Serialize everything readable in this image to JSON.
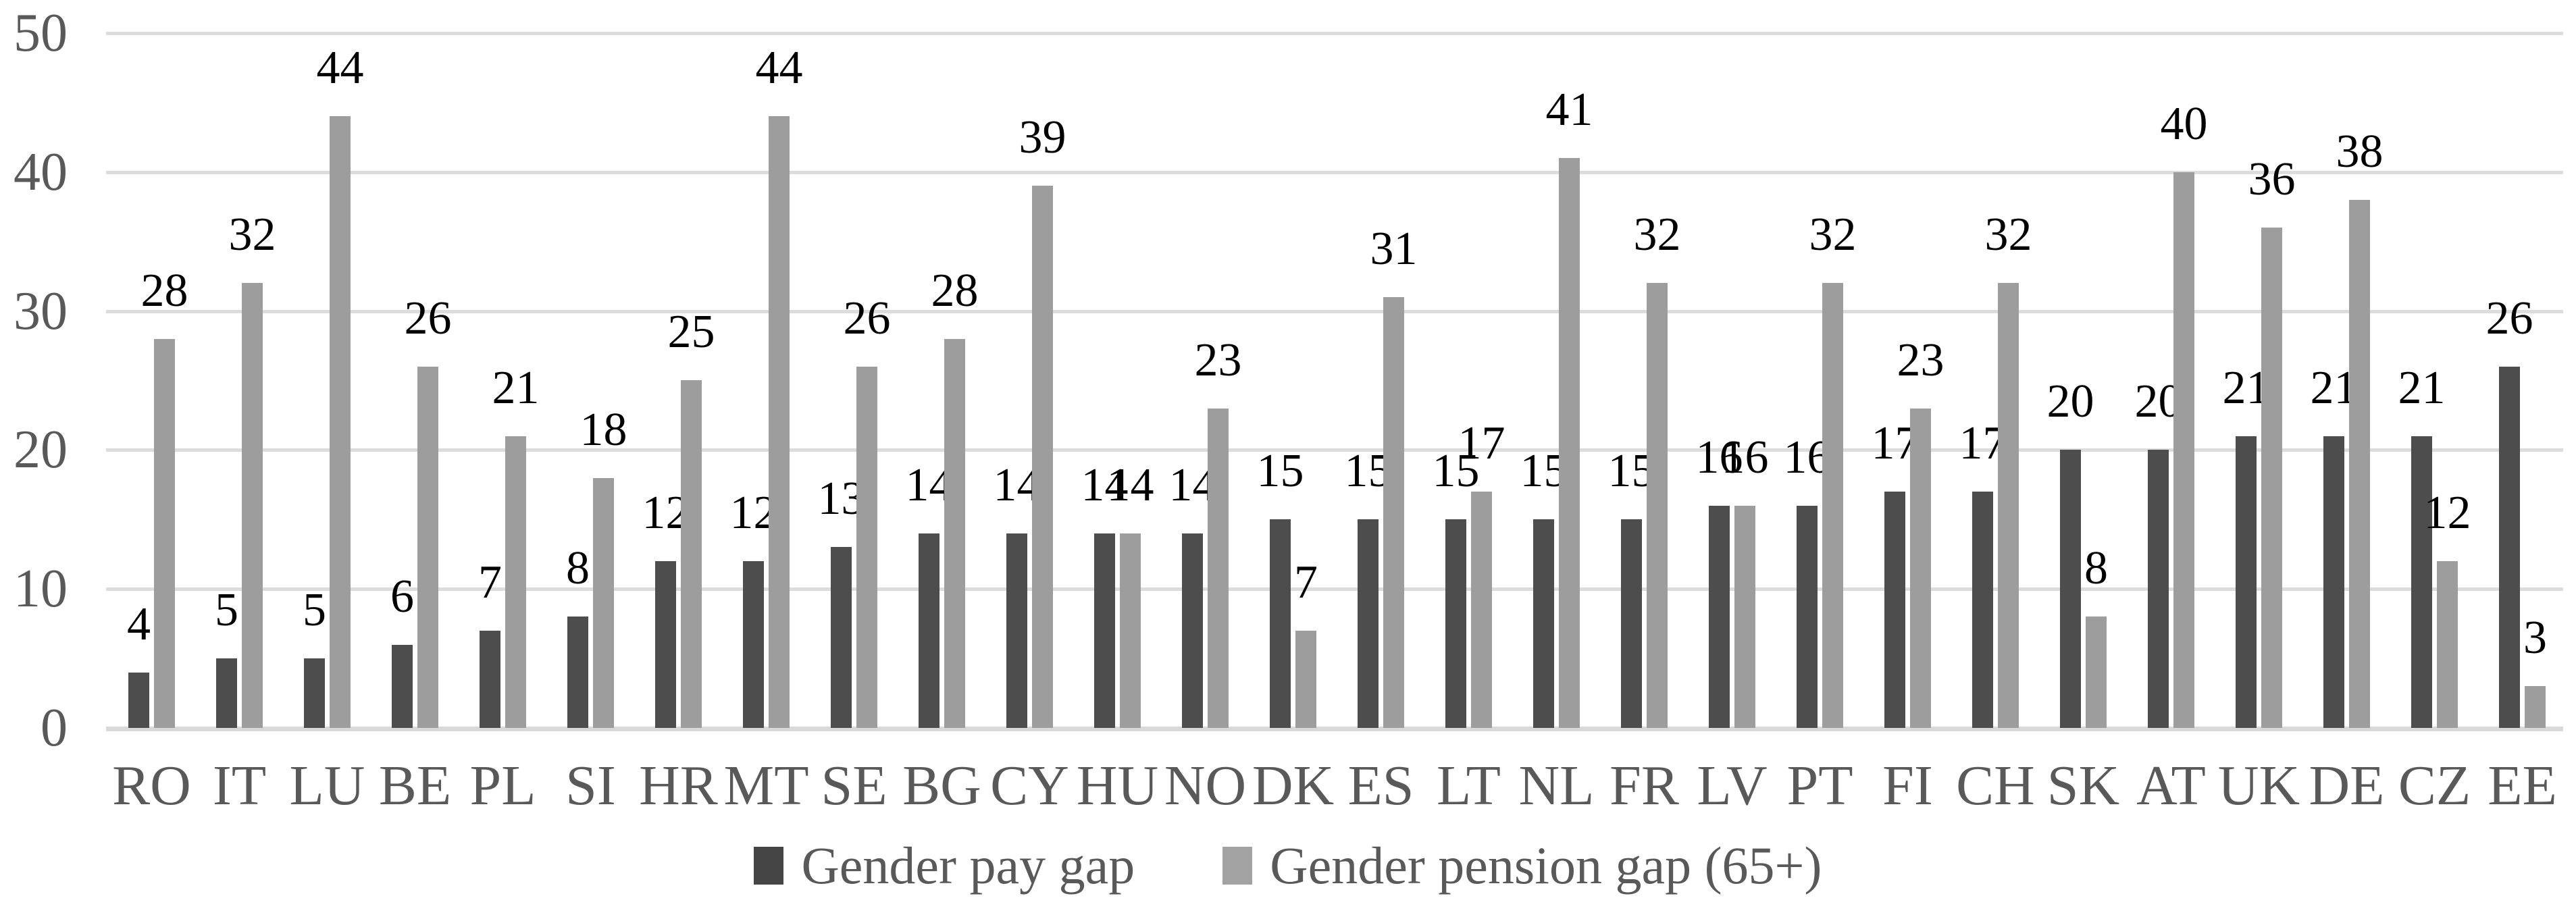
{
  "chart_data": {
    "type": "bar",
    "title": "",
    "xlabel": "",
    "ylabel": "",
    "ylim": [
      0,
      50
    ],
    "yticks": [
      0,
      10,
      20,
      30,
      40,
      50
    ],
    "grid": true,
    "data_labels": true,
    "legend_position": "bottom-center",
    "categories": [
      "RO",
      "IT",
      "LU",
      "BE",
      "PL",
      "SI",
      "HR",
      "MT",
      "SE",
      "BG",
      "CY",
      "HU",
      "NO",
      "DK",
      "ES",
      "LT",
      "NL",
      "FR",
      "LV",
      "PT",
      "FI",
      "CH",
      "SK",
      "AT",
      "UK",
      "DE",
      "CZ",
      "EE"
    ],
    "series": [
      {
        "name": "Gender pay gap",
        "color": "#4d4d4d",
        "values": [
          4,
          5,
          5,
          6,
          7,
          8,
          12,
          12,
          13,
          14,
          14,
          14,
          14,
          15,
          15,
          15,
          15,
          15,
          16,
          16,
          17,
          17,
          20,
          20,
          21,
          21,
          21,
          26
        ]
      },
      {
        "name": "Gender pension gap (65+)",
        "color": "#9d9d9d",
        "values": [
          28,
          32,
          44,
          26,
          21,
          18,
          25,
          44,
          26,
          28,
          39,
          14,
          23,
          7,
          31,
          17,
          41,
          32,
          16,
          32,
          23,
          32,
          8,
          40,
          36,
          38,
          12,
          3
        ]
      }
    ],
    "colors": {
      "gridline": "#dcdcdc",
      "axis_text": "#595959",
      "data_label_text": "#000000",
      "background": "#ffffff"
    }
  }
}
